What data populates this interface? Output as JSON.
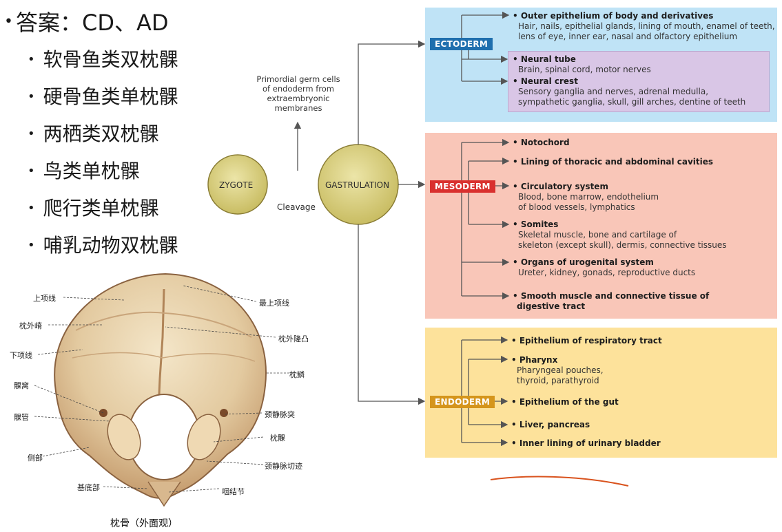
{
  "slide": {
    "answer": "答案：CD、AD",
    "options": [
      "软骨鱼类双枕髁",
      "硬骨鱼类单枕髁",
      "两栖类双枕髁",
      "鸟类单枕髁",
      "爬行类单枕髁",
      "哺乳动物双枕髁"
    ]
  },
  "skull": {
    "caption": "枕骨（外面观）",
    "labels": {
      "upper_nuchal": "上项线",
      "ext_crest": "枕外嵴",
      "lower_nuchal": "下项线",
      "condylar_fossa": "髁窝",
      "condylar_canal": "髁管",
      "lateral_part": "侧部",
      "basilar_part": "基底部",
      "highest_nuchal": "最上项线",
      "ext_protuberance": "枕外隆凸",
      "occipital_squama": "枕鳞",
      "jugular_process": "颈静脉突",
      "condyle": "枕髁",
      "jugular_notch": "颈静脉切迹",
      "pharyngeal_tubercle": "咽结节"
    }
  },
  "diagram": {
    "zygote": "ZYGOTE",
    "gastrulation": "GASTRULATION",
    "cleavage": "Cleavage",
    "pgc": "Primordial germ cells of endoderm from extraembryonic membranes",
    "ectoderm": {
      "label": "ECTODERM",
      "items": [
        {
          "title": "Outer epithelium of body and derivatives",
          "detail": [
            "Hair, nails, epithelial glands, lining of mouth, enamel of teeth,",
            "lens of eye, inner ear, nasal and olfactory epithelium"
          ]
        },
        {
          "title": "Neural tube",
          "detail": [
            "Brain, spinal cord, motor nerves"
          ]
        },
        {
          "title": "Neural crest",
          "detail": [
            "Sensory ganglia and nerves, adrenal medulla,",
            "sympathetic ganglia, skull, gill arches, dentine of teeth"
          ]
        }
      ]
    },
    "mesoderm": {
      "label": "MESODERM",
      "items": [
        {
          "title": "Notochord",
          "detail": []
        },
        {
          "title": "Lining of thoracic and abdominal cavities",
          "detail": []
        },
        {
          "title": "Circulatory system",
          "detail": [
            "Blood, bone marrow, endothelium",
            "of blood vessels, lymphatics"
          ]
        },
        {
          "title": "Somites",
          "detail": [
            "Skeletal muscle, bone and cartilage of",
            "skeleton (except skull), dermis, connective tissues"
          ]
        },
        {
          "title": "Organs of urogenital system",
          "detail": [
            "Ureter, kidney, gonads, reproductive ducts"
          ]
        },
        {
          "title": "Smooth muscle and connective tissue of",
          "detail": []
        },
        {
          "title2": "digestive tract"
        }
      ]
    },
    "endoderm": {
      "label": "ENDODERM",
      "items": [
        {
          "title": "Epithelium of respiratory tract",
          "detail": []
        },
        {
          "title": "Pharynx",
          "detail": [
            "Pharyngeal pouches,",
            "thyroid, parathyroid"
          ]
        },
        {
          "title": "Epithelium of the gut",
          "detail": []
        },
        {
          "title": "Liver, pancreas",
          "detail": []
        },
        {
          "title": "Inner lining of urinary bladder",
          "detail": []
        }
      ]
    },
    "colors": {
      "ecto_bg": "#bfe3f6",
      "neural_bg": "#d9c6e6",
      "meso_bg": "#f9c6b8",
      "endo_bg": "#fde29b",
      "circle": "#d8cf7a",
      "annotation": "#d9531e"
    }
  }
}
